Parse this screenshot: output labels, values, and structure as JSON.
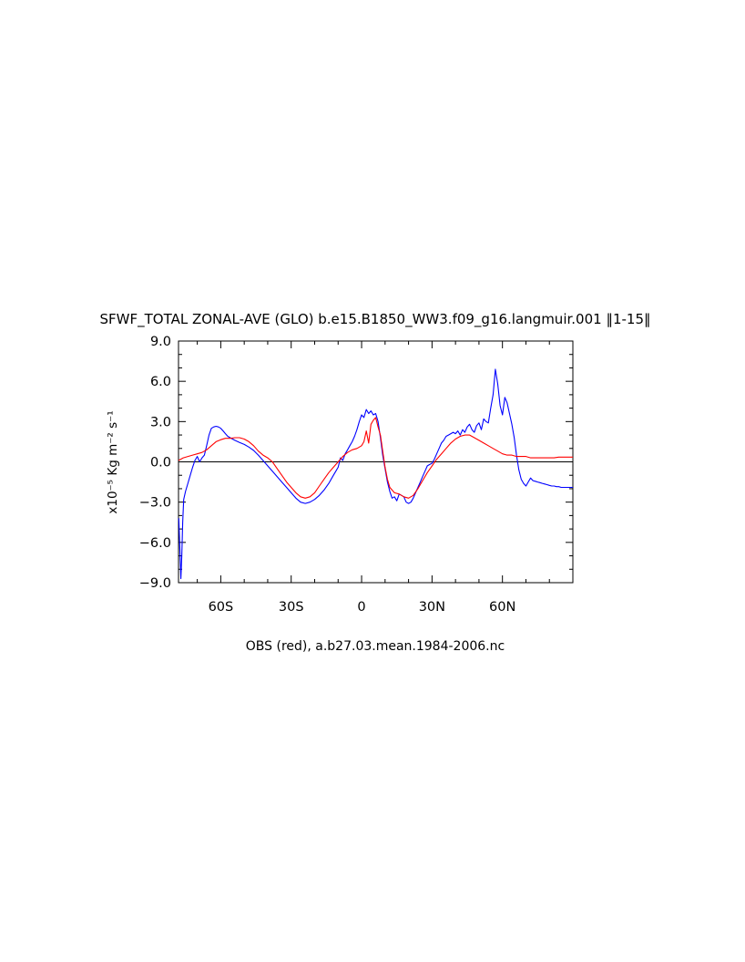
{
  "chart_data": {
    "type": "line",
    "title": "SFWF_TOTAL ZONAL-AVE (GLO) b.e15.B1850_WW3.f09_g16.langmuir.001 ‖1-15‖",
    "subtitle": "OBS (red), a.b27.03.mean.1984-2006.nc",
    "ylabel": "x10⁻⁵ Kg m⁻² s⁻¹",
    "xlabel": "",
    "xlim": [
      -78,
      90
    ],
    "ylim": [
      -9,
      9
    ],
    "x_ticks": [
      {
        "value": -60,
        "label": "60S"
      },
      {
        "value": -30,
        "label": "30S"
      },
      {
        "value": 0,
        "label": "0"
      },
      {
        "value": 30,
        "label": "30N"
      },
      {
        "value": 60,
        "label": "60N"
      }
    ],
    "y_ticks": [
      {
        "value": 9,
        "label": "9.0"
      },
      {
        "value": 6,
        "label": "6.0"
      },
      {
        "value": 3,
        "label": "3.0"
      },
      {
        "value": 0,
        "label": "0.0"
      },
      {
        "value": -3,
        "label": "−3.0"
      },
      {
        "value": -6,
        "label": "−6.0"
      },
      {
        "value": -9,
        "label": "−9.0"
      }
    ],
    "zero_line": true,
    "grid": false,
    "series": [
      {
        "color": "#0000ff",
        "x": [
          -77.9,
          -77.4,
          -77,
          -76.6,
          -76.2,
          -75.8,
          -75,
          -74,
          -73,
          -72,
          -71,
          -70,
          -69,
          -68,
          -67,
          -66,
          -65,
          -64,
          -63,
          -62,
          -61,
          -60,
          -59,
          -58,
          -57,
          -56,
          -55,
          -54,
          -52,
          -50,
          -48,
          -46,
          -44,
          -42,
          -40,
          -38,
          -36,
          -34,
          -32,
          -30,
          -28,
          -26,
          -24,
          -22,
          -20,
          -18,
          -16,
          -14,
          -12,
          -11,
          -10,
          -9,
          -8,
          -7,
          -6,
          -5,
          -4,
          -3,
          -2,
          -1,
          0,
          1,
          2,
          3,
          4,
          5,
          6,
          7,
          8,
          9,
          10,
          11,
          12,
          13,
          14,
          15,
          16,
          17,
          18,
          19,
          20,
          21,
          22,
          23,
          24,
          25,
          26,
          27,
          28,
          29,
          30,
          31,
          32,
          33,
          34,
          35,
          36,
          37,
          38,
          39,
          40,
          41,
          42,
          43,
          44,
          45,
          46,
          47,
          48,
          49,
          50,
          51,
          52,
          53,
          54,
          55,
          56,
          57,
          58,
          59,
          60,
          61,
          62,
          63,
          64,
          65,
          66,
          67,
          68,
          69,
          70,
          71,
          72,
          73,
          74,
          75,
          76,
          77,
          78,
          79,
          80,
          81,
          82,
          83,
          84,
          85,
          86,
          87,
          88,
          89,
          90
        ],
        "y": [
          -4.2,
          -6.5,
          -8.7,
          -7.0,
          -4.5,
          -2.8,
          -2.2,
          -1.6,
          -1.0,
          -0.4,
          0.1,
          0.4,
          0.0,
          0.3,
          0.5,
          1.2,
          2.0,
          2.5,
          2.6,
          2.65,
          2.6,
          2.5,
          2.3,
          2.1,
          1.9,
          1.8,
          1.7,
          1.6,
          1.45,
          1.3,
          1.1,
          0.85,
          0.5,
          0.1,
          -0.3,
          -0.7,
          -1.1,
          -1.5,
          -1.9,
          -2.3,
          -2.7,
          -3.0,
          -3.1,
          -3.0,
          -2.8,
          -2.5,
          -2.1,
          -1.6,
          -1.0,
          -0.7,
          -0.4,
          0.3,
          0.1,
          0.6,
          0.9,
          1.2,
          1.5,
          1.9,
          2.4,
          3.0,
          3.5,
          3.3,
          3.9,
          3.6,
          3.8,
          3.5,
          3.6,
          3.0,
          1.8,
          0.5,
          -0.5,
          -1.5,
          -2.2,
          -2.7,
          -2.6,
          -2.9,
          -2.4,
          -2.5,
          -2.6,
          -3.0,
          -3.1,
          -3.0,
          -2.7,
          -2.3,
          -1.9,
          -1.5,
          -1.1,
          -0.7,
          -0.3,
          -0.2,
          -0.1,
          0.2,
          0.6,
          1.0,
          1.4,
          1.6,
          1.9,
          2.0,
          2.1,
          2.2,
          2.1,
          2.3,
          2.0,
          2.4,
          2.2,
          2.6,
          2.8,
          2.4,
          2.2,
          2.7,
          2.9,
          2.4,
          3.2,
          3.0,
          2.9,
          4.0,
          5.0,
          6.9,
          5.8,
          4.2,
          3.5,
          4.8,
          4.4,
          3.6,
          2.8,
          1.8,
          0.5,
          -0.6,
          -1.3,
          -1.6,
          -1.8,
          -1.5,
          -1.2,
          -1.4,
          -1.45,
          -1.5,
          -1.55,
          -1.6,
          -1.65,
          -1.7,
          -1.75,
          -1.8,
          -1.8,
          -1.85,
          -1.85,
          -1.9,
          -1.9,
          -1.9,
          -1.9,
          -1.9,
          -1.9
        ],
        "x_last": 90
      },
      {
        "color": "#ff0000",
        "x": [
          -78,
          -76,
          -74,
          -72,
          -70,
          -68,
          -66,
          -64,
          -62,
          -60,
          -58,
          -56,
          -54,
          -52,
          -50,
          -48,
          -46,
          -44,
          -42,
          -40,
          -38,
          -36,
          -34,
          -32,
          -30,
          -28,
          -26,
          -24,
          -22,
          -20,
          -18,
          -16,
          -14,
          -12,
          -10,
          -8,
          -6,
          -4,
          -2,
          0,
          1,
          2,
          3,
          4,
          5,
          6,
          7,
          8,
          9,
          10,
          11,
          12,
          14,
          16,
          18,
          20,
          22,
          24,
          26,
          28,
          30,
          32,
          34,
          36,
          38,
          40,
          42,
          44,
          46,
          48,
          50,
          52,
          54,
          56,
          58,
          60,
          62,
          64,
          66,
          68,
          70,
          72,
          74,
          76,
          78,
          80,
          82,
          84,
          86,
          88,
          90
        ],
        "y": [
          0.1,
          0.3,
          0.4,
          0.5,
          0.6,
          0.7,
          0.9,
          1.2,
          1.5,
          1.65,
          1.75,
          1.75,
          1.8,
          1.8,
          1.7,
          1.5,
          1.2,
          0.8,
          0.5,
          0.3,
          0.0,
          -0.5,
          -1.0,
          -1.5,
          -1.9,
          -2.3,
          -2.6,
          -2.7,
          -2.6,
          -2.3,
          -1.8,
          -1.3,
          -0.8,
          -0.4,
          0.0,
          0.4,
          0.7,
          0.9,
          1.0,
          1.2,
          1.5,
          2.3,
          1.4,
          2.8,
          3.1,
          3.3,
          2.6,
          2.0,
          0.8,
          -0.4,
          -1.3,
          -1.9,
          -2.3,
          -2.4,
          -2.6,
          -2.7,
          -2.5,
          -2.0,
          -1.4,
          -0.8,
          -0.3,
          0.2,
          0.6,
          1.0,
          1.4,
          1.7,
          1.9,
          2.0,
          2.0,
          1.8,
          1.6,
          1.4,
          1.2,
          1.0,
          0.8,
          0.6,
          0.5,
          0.5,
          0.4,
          0.4,
          0.4,
          0.3,
          0.3,
          0.3,
          0.3,
          0.3,
          0.3,
          0.35,
          0.35,
          0.35,
          0.35
        ]
      }
    ]
  }
}
